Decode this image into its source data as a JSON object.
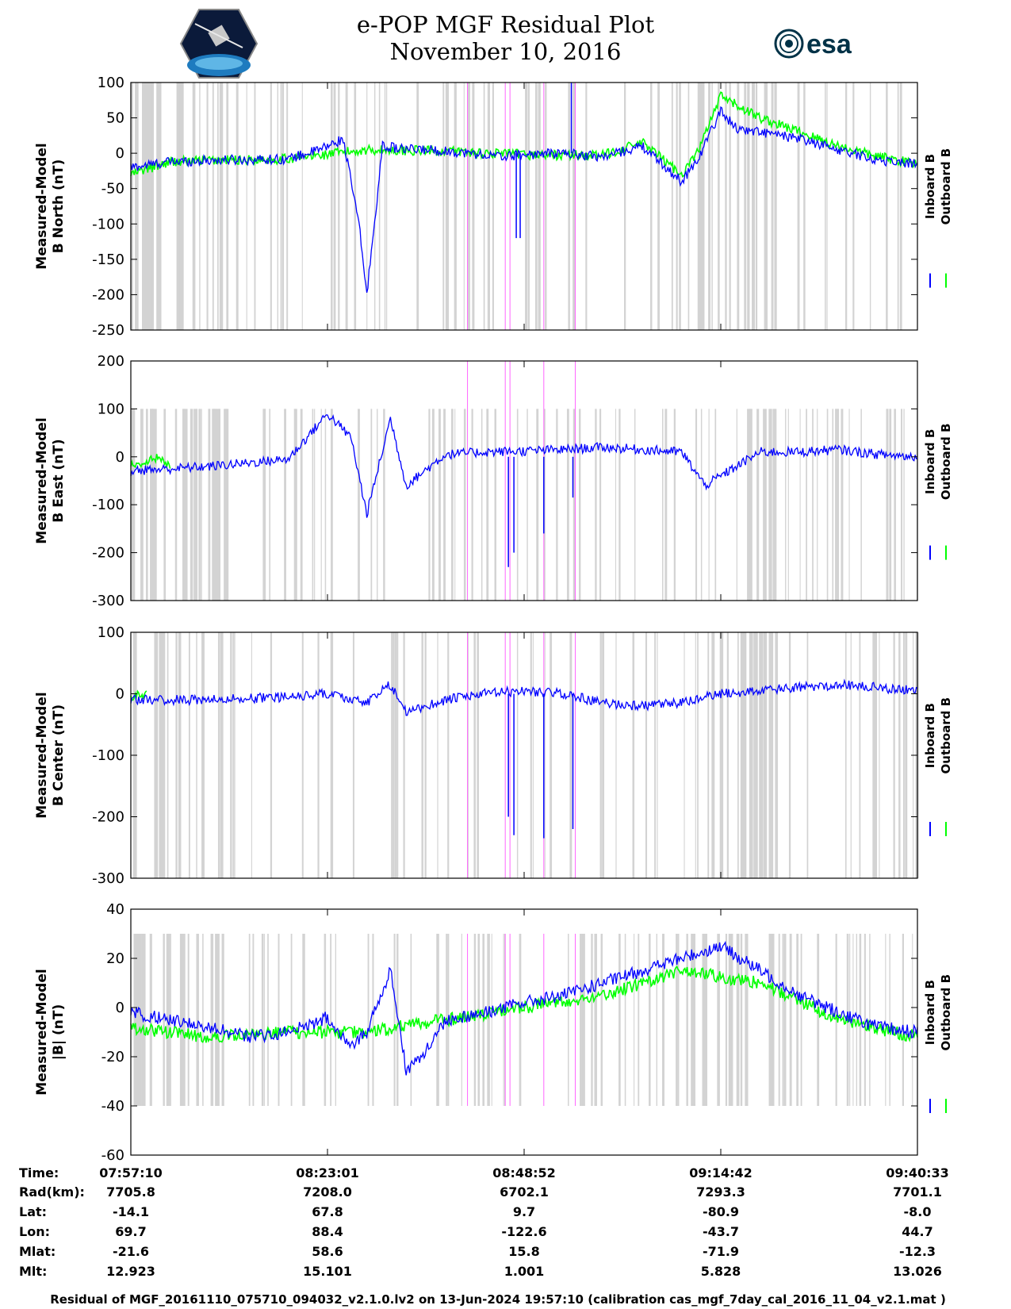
{
  "title": "e-POP MGF Residual Plot",
  "date": "November 10, 2016",
  "logos": {
    "left": "cassiope-mission-logo",
    "right_text": "esa",
    "right_brand_color": "#003247"
  },
  "colors": {
    "inboard": "#0000ff",
    "outboard": "#00ff00",
    "gap_shading": "#d3d3d3",
    "marker": "#ff66ff"
  },
  "chart_data": [
    {
      "type": "line",
      "ylabel_line1": "Measured-Model",
      "ylabel_line2": "B North (nT)",
      "ylim": [
        -250,
        100
      ],
      "yticks": [
        100,
        50,
        0,
        -50,
        -100,
        -150,
        -200,
        -250
      ],
      "ytick_labels": [
        "100",
        "50",
        "0",
        "-50",
        "-100",
        "-150",
        "-200",
        "-250"
      ],
      "legend": [
        "Inboard B",
        "Outboard B"
      ],
      "series": [
        {
          "name": "Inboard B",
          "x": [
            0,
            0.05,
            0.1,
            0.2,
            0.24,
            0.27,
            0.29,
            0.3,
            0.32,
            0.35,
            0.38,
            0.4,
            0.43,
            0.47,
            0.5,
            0.55,
            0.6,
            0.65,
            0.7,
            0.72,
            0.75,
            0.77,
            0.8,
            0.85,
            0.9,
            0.95,
            1.0
          ],
          "values": [
            -20,
            -12,
            -10,
            -8,
            5,
            20,
            -100,
            -200,
            10,
            5,
            5,
            3,
            0,
            -5,
            -2,
            0,
            -5,
            10,
            -40,
            -10,
            60,
            35,
            30,
            20,
            5,
            -10,
            -15
          ]
        },
        {
          "name": "Outboard B",
          "x": [
            0,
            0.05,
            0.1,
            0.2,
            0.3,
            0.4,
            0.5,
            0.6,
            0.65,
            0.7,
            0.72,
            0.75,
            0.8,
            0.85,
            0.9,
            0.95,
            1.0
          ],
          "values": [
            -30,
            -12,
            -10,
            -8,
            5,
            3,
            -2,
            -3,
            15,
            -30,
            0,
            80,
            50,
            30,
            10,
            -5,
            -15
          ]
        }
      ]
    },
    {
      "type": "line",
      "ylabel_line1": "Measured-Model",
      "ylabel_line2": "B East (nT)",
      "ylim": [
        -300,
        200
      ],
      "yticks": [
        200,
        100,
        0,
        -100,
        -200,
        -300
      ],
      "ytick_labels": [
        "200",
        "100",
        "0",
        "-100",
        "-200",
        "-300"
      ],
      "legend": [
        "Inboard B",
        "Outboard B"
      ],
      "series": [
        {
          "name": "Inboard B",
          "x": [
            0,
            0.1,
            0.2,
            0.25,
            0.28,
            0.3,
            0.33,
            0.35,
            0.4,
            0.45,
            0.5,
            0.55,
            0.6,
            0.7,
            0.73,
            0.76,
            0.8,
            0.85,
            0.9,
            0.95,
            1.0
          ],
          "values": [
            -30,
            -20,
            -5,
            90,
            40,
            -120,
            80,
            -60,
            5,
            10,
            12,
            15,
            20,
            10,
            -60,
            -30,
            10,
            10,
            15,
            5,
            0
          ]
        },
        {
          "name": "Outboard B",
          "x": [
            0,
            0.03,
            0.05
          ],
          "values": [
            -20,
            0,
            -20
          ]
        }
      ]
    },
    {
      "type": "line",
      "ylabel_line1": "Measured-Model",
      "ylabel_line2": "B Center (nT)",
      "ylim": [
        -300,
        100
      ],
      "yticks": [
        100,
        0,
        -100,
        -200,
        -300
      ],
      "ytick_labels": [
        "100",
        "0",
        "-100",
        "-200",
        "-300"
      ],
      "legend": [
        "Inboard B",
        "Outboard B"
      ],
      "series": [
        {
          "name": "Inboard B",
          "x": [
            0,
            0.1,
            0.2,
            0.25,
            0.3,
            0.33,
            0.35,
            0.4,
            0.45,
            0.5,
            0.55,
            0.6,
            0.65,
            0.7,
            0.75,
            0.8,
            0.85,
            0.9,
            1.0
          ],
          "values": [
            -10,
            -10,
            -5,
            0,
            -15,
            15,
            -30,
            -10,
            0,
            5,
            0,
            -15,
            -20,
            -15,
            0,
            5,
            10,
            15,
            5
          ]
        },
        {
          "name": "Outboard B",
          "x": [
            0,
            0.02
          ],
          "values": [
            -5,
            0
          ]
        }
      ]
    },
    {
      "type": "line",
      "ylabel_line1": "Measured-Model",
      "ylabel_line2": "|B| (nT)",
      "ylim": [
        -60,
        40
      ],
      "yticks": [
        40,
        20,
        0,
        -20,
        -40,
        -60
      ],
      "ytick_labels": [
        "40",
        "20",
        "0",
        "-20",
        "-40",
        "-60"
      ],
      "legend": [
        "Inboard B",
        "Outboard B"
      ],
      "series": [
        {
          "name": "Inboard B",
          "x": [
            0,
            0.05,
            0.1,
            0.15,
            0.2,
            0.25,
            0.28,
            0.3,
            0.33,
            0.35,
            0.37,
            0.4,
            0.45,
            0.5,
            0.55,
            0.6,
            0.65,
            0.7,
            0.75,
            0.8,
            0.85,
            0.9,
            0.95,
            1.0
          ],
          "values": [
            -2,
            -5,
            -8,
            -12,
            -10,
            -4,
            -15,
            -10,
            15,
            -25,
            -20,
            -5,
            -2,
            2,
            5,
            10,
            15,
            20,
            25,
            15,
            5,
            -2,
            -8,
            -10
          ]
        },
        {
          "name": "Outboard B",
          "x": [
            0,
            0.05,
            0.1,
            0.2,
            0.3,
            0.5,
            0.6,
            0.7,
            0.8,
            0.9,
            1.0
          ],
          "values": [
            -8,
            -10,
            -12,
            -10,
            -10,
            0,
            5,
            15,
            10,
            -5,
            -12
          ]
        }
      ]
    }
  ],
  "info_table": {
    "row_labels": [
      "Time:",
      "Rad(km):",
      "Lat:",
      "Lon:",
      "Mlat:",
      "Mlt:"
    ],
    "columns": [
      [
        "07:57:10",
        "7705.8",
        "-14.1",
        "69.7",
        "-21.6",
        "12.923"
      ],
      [
        "08:23:01",
        "7208.0",
        "67.8",
        "88.4",
        "58.6",
        "15.101"
      ],
      [
        "08:48:52",
        "6702.1",
        "9.7",
        "-122.6",
        "15.8",
        "1.001"
      ],
      [
        "09:14:42",
        "7293.3",
        "-80.9",
        "-43.7",
        "-71.9",
        "5.828"
      ],
      [
        "09:40:33",
        "7701.1",
        "-8.0",
        "44.7",
        "-12.3",
        "13.026"
      ]
    ]
  },
  "footer": "Residual of MGF_20161110_075710_094032_v2.1.0.lv2 on 13-Jun-2024 19:57:10 (calibration cas_mgf_7day_cal_2016_11_04_v2.1.mat )"
}
